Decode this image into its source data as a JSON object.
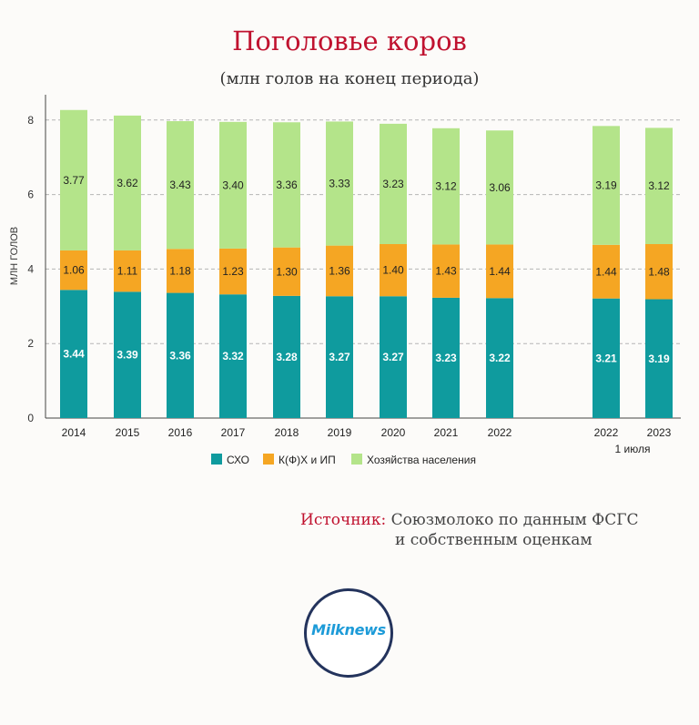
{
  "title": "Поголовье коров",
  "subtitle": "(млн голов на конец периода)",
  "source": {
    "label": "Источник:",
    "line1": "Союзмолоко по данным ФСГС",
    "line2": "и собственным оценкам"
  },
  "logo_text": "Milknews",
  "colors": {
    "sho": "#0f9b9e",
    "kfh": "#f5a623",
    "hh": "#b4e48a"
  },
  "chart_data": {
    "type": "bar",
    "stacked": true,
    "ylabel": "МЛН ГОЛОВ",
    "ylim": [
      0,
      8.6
    ],
    "yticks": [
      0,
      2,
      4,
      6,
      8
    ],
    "grid": true,
    "legend_position": "bottom",
    "categories": [
      "2014",
      "2015",
      "2016",
      "2017",
      "2018",
      "2019",
      "2020",
      "2021",
      "2022",
      "2022",
      "2023"
    ],
    "category_sublabel": "1 июля",
    "sublabel_note": "1 июля под 2022 и 2023",
    "series": [
      {
        "name": "СХО",
        "color": "#0f9b9e",
        "label_color": "#ffffff",
        "values": [
          3.44,
          3.39,
          3.36,
          3.32,
          3.28,
          3.27,
          3.27,
          3.23,
          3.22,
          3.21,
          3.19
        ]
      },
      {
        "name": "К(Ф)Х и ИП",
        "color": "#f5a623",
        "label_color": "#222222",
        "values": [
          1.06,
          1.11,
          1.18,
          1.23,
          1.3,
          1.36,
          1.4,
          1.43,
          1.44,
          1.44,
          1.48
        ]
      },
      {
        "name": "Хозяйства населения",
        "color": "#b4e48a",
        "label_color": "#222222",
        "values": [
          3.77,
          3.62,
          3.43,
          3.4,
          3.36,
          3.33,
          3.23,
          3.12,
          3.06,
          3.19,
          3.12
        ]
      }
    ]
  }
}
